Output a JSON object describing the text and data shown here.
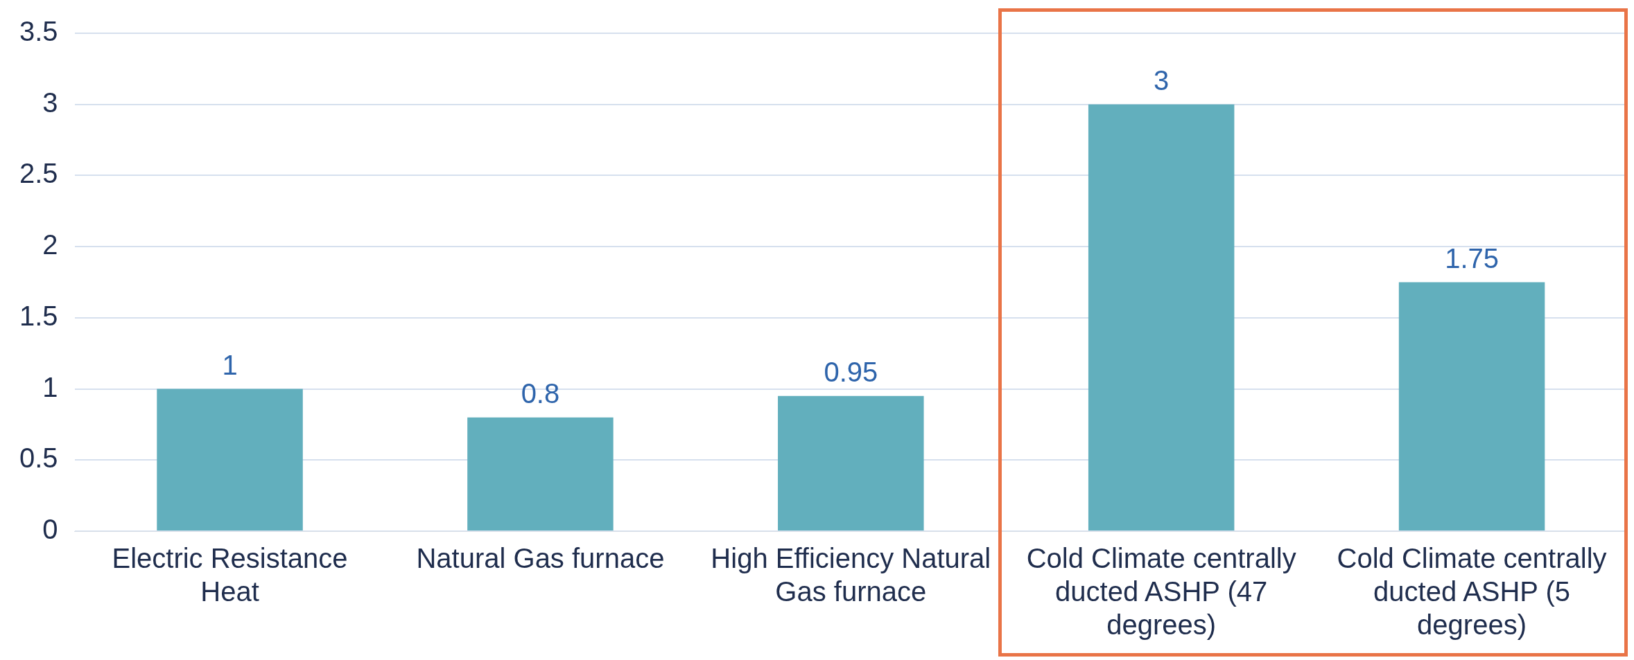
{
  "chart_data": {
    "type": "bar",
    "categories": [
      "Electric Resistance Heat",
      "Natural Gas furnace",
      "High Efficiency Natural Gas furnace",
      "Cold Climate centrally ducted ASHP (47 degrees)",
      "Cold Climate centrally ducted ASHP (5 degrees)"
    ],
    "values": [
      1,
      0.8,
      0.95,
      3,
      1.75
    ],
    "color": "#62afbd",
    "ylim": [
      0,
      3.5
    ],
    "yticks": [
      0,
      0.5,
      1,
      1.5,
      2,
      2.5,
      3,
      3.5
    ],
    "grid": "y",
    "data_labels": true,
    "legend": false
  }
}
